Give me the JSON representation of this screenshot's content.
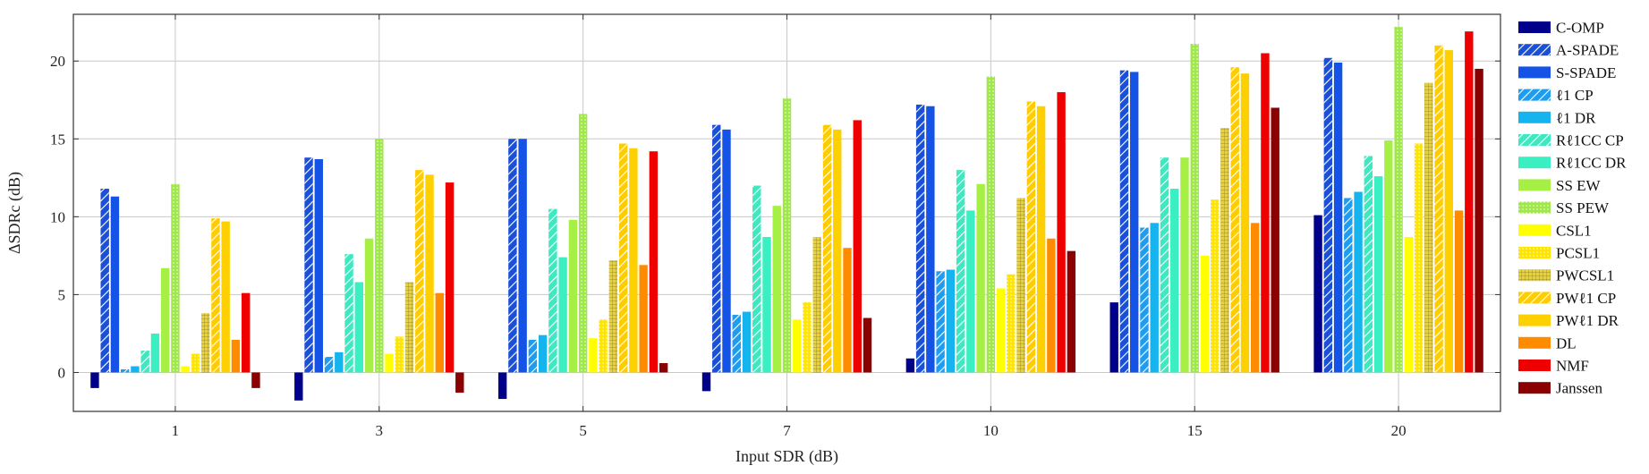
{
  "chart_data": {
    "type": "bar",
    "xlabel": "Input SDR (dB)",
    "ylabel": "ΔSDRc (dB)",
    "ylim": [
      -2.5,
      23
    ],
    "yticks": [
      0,
      5,
      10,
      15,
      20
    ],
    "grid": true,
    "legend_position": "right",
    "categories": [
      "1",
      "3",
      "5",
      "7",
      "10",
      "15",
      "20"
    ],
    "series": [
      {
        "name": "C-OMP",
        "color": "#00008b",
        "pattern": "solid",
        "values": [
          -1.0,
          -1.8,
          -1.7,
          -1.2,
          0.9,
          4.5,
          10.1
        ]
      },
      {
        "name": "A-SPADE",
        "color": "#1a4fd8",
        "pattern": "diag",
        "values": [
          11.8,
          13.8,
          15.0,
          15.9,
          17.2,
          19.4,
          20.2
        ]
      },
      {
        "name": "S-SPADE",
        "color": "#1553e6",
        "pattern": "solid",
        "values": [
          11.3,
          13.7,
          15.0,
          15.6,
          17.1,
          19.3,
          19.9
        ]
      },
      {
        "name": "ℓ1 CP",
        "color": "#1e9cf0",
        "pattern": "diag",
        "values": [
          0.2,
          1.0,
          2.1,
          3.7,
          6.5,
          9.3,
          11.2
        ]
      },
      {
        "name": "ℓ1 DR",
        "color": "#16b4ef",
        "pattern": "solid",
        "values": [
          0.4,
          1.3,
          2.4,
          3.9,
          6.6,
          9.6,
          11.6
        ]
      },
      {
        "name": "Rℓ1CC CP",
        "color": "#3ee8c0",
        "pattern": "diag",
        "values": [
          1.4,
          7.6,
          10.5,
          12.0,
          13.0,
          13.8,
          13.9
        ]
      },
      {
        "name": "Rℓ1CC DR",
        "color": "#3af0c2",
        "pattern": "solid",
        "values": [
          2.5,
          5.8,
          7.4,
          8.7,
          10.4,
          11.8,
          12.6
        ]
      },
      {
        "name": "SS EW",
        "color": "#a6f045",
        "pattern": "solid",
        "values": [
          6.7,
          8.6,
          9.8,
          10.7,
          12.1,
          13.8,
          14.9
        ]
      },
      {
        "name": "SS PEW",
        "color": "#a0e84a",
        "pattern": "dots",
        "values": [
          12.1,
          15.0,
          16.6,
          17.6,
          19.0,
          21.1,
          22.2
        ]
      },
      {
        "name": "CSL1",
        "color": "#ffff00",
        "pattern": "solid",
        "values": [
          0.4,
          1.2,
          2.2,
          3.4,
          5.4,
          7.5,
          8.7
        ]
      },
      {
        "name": "PCSL1",
        "color": "#ffe400",
        "pattern": "dots",
        "values": [
          1.2,
          2.3,
          3.4,
          4.5,
          6.3,
          11.1,
          14.7
        ]
      },
      {
        "name": "PWCSL1",
        "color": "#e8d23c",
        "pattern": "grid",
        "values": [
          3.8,
          5.8,
          7.2,
          8.7,
          11.2,
          15.7,
          18.6
        ]
      },
      {
        "name": "PWℓ1 CP",
        "color": "#ffcc00",
        "pattern": "diag",
        "values": [
          9.9,
          13.0,
          14.7,
          15.9,
          17.4,
          19.6,
          21.0
        ]
      },
      {
        "name": "PWℓ1 DR",
        "color": "#ffd000",
        "pattern": "solid",
        "values": [
          9.7,
          12.7,
          14.4,
          15.6,
          17.1,
          19.2,
          20.7
        ]
      },
      {
        "name": "DL",
        "color": "#ff8c00",
        "pattern": "solid",
        "values": [
          2.1,
          5.1,
          6.9,
          8.0,
          8.6,
          9.6,
          10.4
        ]
      },
      {
        "name": "NMF",
        "color": "#ee0000",
        "pattern": "solid",
        "values": [
          5.1,
          12.2,
          14.2,
          16.2,
          18.0,
          20.5,
          21.9
        ]
      },
      {
        "name": "Janssen",
        "color": "#8b0000",
        "pattern": "solid",
        "values": [
          -1.0,
          -1.3,
          0.6,
          3.5,
          7.8,
          17.0,
          19.5
        ]
      }
    ]
  }
}
